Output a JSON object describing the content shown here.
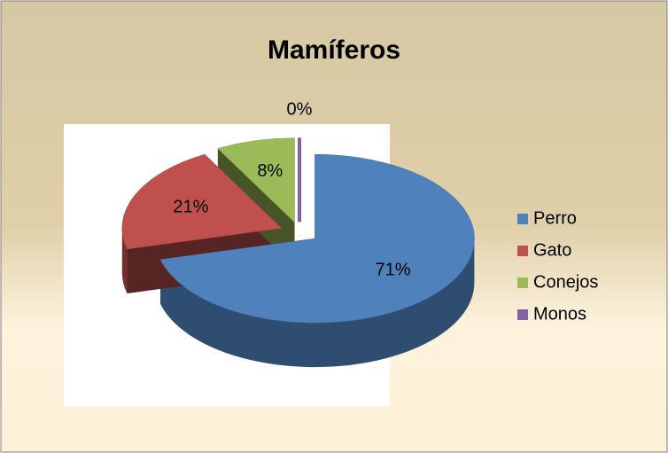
{
  "chart_data": {
    "type": "pie",
    "title": "Mamíferos",
    "categories": [
      "Perro",
      "Gato",
      "Conejos",
      "Monos"
    ],
    "values": [
      71,
      21,
      8,
      0
    ],
    "value_labels": [
      "71%",
      "21%",
      "8%",
      "0%"
    ],
    "colors": [
      "#4f81bd",
      "#c0504d",
      "#9bbb59",
      "#8064a2"
    ],
    "legend": "right"
  }
}
